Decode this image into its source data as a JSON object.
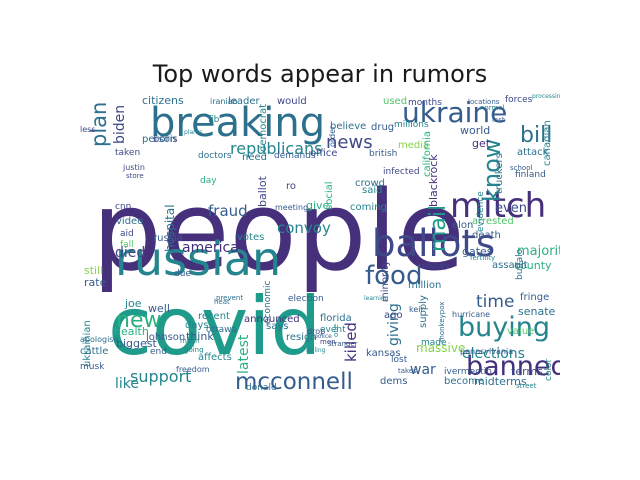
{
  "title": "Top words appear in rumors",
  "colors": {
    "dark_purple": "#46307b",
    "purple": "#3f4889",
    "blue": "#365c8d",
    "teal_blue": "#2d708e",
    "teal": "#25858e",
    "green_teal": "#1e9b8a",
    "green": "#2ab07f",
    "light_green": "#52c569",
    "yellow_green": "#86d549",
    "yellow": "#c2df23"
  },
  "words": [
    {
      "text": "people",
      "color": "dark_purple"
    },
    {
      "text": "covid",
      "color": "green_teal"
    },
    {
      "text": "russian",
      "color": "teal"
    },
    {
      "text": "breaking",
      "color": "teal_blue"
    },
    {
      "text": "ukraine",
      "color": "blue"
    },
    {
      "text": "ballots",
      "color": "purple"
    },
    {
      "text": "mitch",
      "color": "dark_purple"
    },
    {
      "text": "buying",
      "color": "teal"
    },
    {
      "text": "banned",
      "color": "dark_purple"
    },
    {
      "text": "food",
      "color": "blue"
    },
    {
      "text": "mcconnell",
      "color": "blue"
    },
    {
      "text": "know",
      "color": "teal"
    },
    {
      "text": "mail",
      "color": "green_teal"
    },
    {
      "text": "bill",
      "color": "teal_blue"
    },
    {
      "text": "news",
      "color": "purple"
    },
    {
      "text": "plan",
      "color": "teal_blue"
    },
    {
      "text": "new",
      "color": "green"
    },
    {
      "text": "republicans",
      "color": "teal"
    },
    {
      "text": "biden",
      "color": "purple"
    },
    {
      "text": "support",
      "color": "teal"
    },
    {
      "text": "america",
      "color": "dark_purple"
    },
    {
      "text": "convoy",
      "color": "teal"
    },
    {
      "text": "fraud",
      "color": "blue"
    },
    {
      "text": "elections",
      "color": "teal"
    },
    {
      "text": "time",
      "color": "blue"
    },
    {
      "text": "latest",
      "color": "green"
    },
    {
      "text": "killed",
      "color": "dark_purple"
    },
    {
      "text": "giving",
      "color": "teal_blue"
    },
    {
      "text": "war",
      "color": "blue"
    },
    {
      "text": "like",
      "color": "teal"
    },
    {
      "text": "died",
      "color": "purple"
    },
    {
      "text": "hospital",
      "color": "teal_blue"
    },
    {
      "text": "vaccine",
      "color": "teal_blue"
    },
    {
      "text": "citizens",
      "color": "teal_blue"
    },
    {
      "text": "leader",
      "color": "teal_blue"
    },
    {
      "text": "would",
      "color": "purple"
    },
    {
      "text": "believe",
      "color": "teal_blue"
    },
    {
      "text": "used",
      "color": "light_green"
    },
    {
      "text": "world",
      "color": "blue"
    },
    {
      "text": "get",
      "color": "dark_purple"
    },
    {
      "text": "even",
      "color": "purple"
    },
    {
      "text": "majority",
      "color": "green"
    },
    {
      "text": "county",
      "color": "green"
    },
    {
      "text": "fringe",
      "color": "blue"
    },
    {
      "text": "senate",
      "color": "teal_blue"
    },
    {
      "text": "value",
      "color": "light_green"
    },
    {
      "text": "terms",
      "color": "purple"
    },
    {
      "text": "midterms",
      "color": "teal_blue"
    },
    {
      "text": "massive",
      "color": "yellow_green"
    },
    {
      "text": "supply",
      "color": "teal_blue"
    },
    {
      "text": "kansas",
      "color": "blue"
    },
    {
      "text": "resign",
      "color": "teal_blue"
    },
    {
      "text": "florida",
      "color": "teal_blue"
    },
    {
      "text": "announced",
      "color": "dark_purple"
    },
    {
      "text": "says",
      "color": "teal_blue"
    },
    {
      "text": "recent",
      "color": "teal"
    },
    {
      "text": "well",
      "color": "blue"
    },
    {
      "text": "joe",
      "color": "teal"
    },
    {
      "text": "rate",
      "color": "blue"
    },
    {
      "text": "still",
      "color": "yellow_green"
    },
    {
      "text": "health",
      "color": "green"
    },
    {
      "text": "biggest",
      "color": "blue"
    },
    {
      "text": "think",
      "color": "blue"
    },
    {
      "text": "days",
      "color": "teal"
    },
    {
      "text": "ukrainian",
      "color": "teal"
    },
    {
      "text": "russia",
      "color": "blue"
    },
    {
      "text": "video",
      "color": "teal_blue"
    },
    {
      "text": "cnn",
      "color": "purple"
    },
    {
      "text": "aid",
      "color": "purple"
    },
    {
      "text": "fall",
      "color": "light_green"
    },
    {
      "text": "boris",
      "color": "purple"
    },
    {
      "text": "taken",
      "color": "purple"
    },
    {
      "text": "person",
      "color": "teal_blue"
    },
    {
      "text": "doctors",
      "color": "teal_blue"
    },
    {
      "text": "need",
      "color": "teal_blue"
    },
    {
      "text": "office",
      "color": "purple"
    },
    {
      "text": "british",
      "color": "blue"
    },
    {
      "text": "media",
      "color": "yellow_green"
    },
    {
      "text": "crowd",
      "color": "teal_blue"
    },
    {
      "text": "said",
      "color": "teal"
    },
    {
      "text": "coming",
      "color": "teal"
    },
    {
      "text": "social",
      "color": "green"
    },
    {
      "text": "give",
      "color": "green"
    },
    {
      "text": "votes",
      "color": "teal"
    },
    {
      "text": "ago",
      "color": "purple"
    },
    {
      "text": "event",
      "color": "teal"
    },
    {
      "text": "minority",
      "color": "purple"
    },
    {
      "text": "million",
      "color": "teal_blue"
    },
    {
      "text": "gates",
      "color": "blue"
    },
    {
      "text": "assault",
      "color": "teal_blue"
    },
    {
      "text": "death",
      "color": "blue"
    },
    {
      "text": "arrested",
      "color": "light_green"
    },
    {
      "text": "truckers",
      "color": "teal_blue"
    },
    {
      "text": "buffalo",
      "color": "teal_blue"
    },
    {
      "text": "blackrock",
      "color": "dark_purple"
    },
    {
      "text": "california",
      "color": "green"
    },
    {
      "text": "evidence",
      "color": "teal"
    },
    {
      "text": "attack",
      "color": "teal_blue"
    },
    {
      "text": "canadian",
      "color": "teal"
    },
    {
      "text": "finland",
      "color": "blue"
    },
    {
      "text": "forces",
      "color": "purple"
    },
    {
      "text": "drug",
      "color": "blue"
    },
    {
      "text": "millions",
      "color": "teal"
    },
    {
      "text": "months",
      "color": "purple"
    },
    {
      "text": "ballot",
      "color": "purple"
    },
    {
      "text": "democrat",
      "color": "teal"
    },
    {
      "text": "fjb",
      "color": "teal"
    },
    {
      "text": "ro",
      "color": "purple"
    },
    {
      "text": "election",
      "color": "blue"
    },
    {
      "text": "meeting",
      "color": "blue"
    },
    {
      "text": "demands",
      "color": "blue"
    },
    {
      "text": "economic",
      "color": "teal_blue"
    },
    {
      "text": "donald",
      "color": "teal_blue"
    },
    {
      "text": "affects",
      "color": "teal"
    },
    {
      "text": "ottawa",
      "color": "teal_blue"
    },
    {
      "text": "johnson",
      "color": "blue"
    },
    {
      "text": "end",
      "color": "blue"
    },
    {
      "text": "cattle",
      "color": "teal_blue"
    },
    {
      "text": "musk",
      "color": "blue"
    },
    {
      "text": "apologise",
      "color": "teal_blue"
    },
    {
      "text": "color",
      "color": "teal"
    },
    {
      "text": "dems",
      "color": "blue"
    },
    {
      "text": "become",
      "color": "teal_blue"
    },
    {
      "text": "ivermectin",
      "color": "blue"
    },
    {
      "text": "elon",
      "color": "blue"
    },
    {
      "text": "lost",
      "color": "blue"
    },
    {
      "text": "made",
      "color": "teal"
    },
    {
      "text": "keir",
      "color": "blue"
    },
    {
      "text": "history",
      "color": "purple"
    },
    {
      "text": "hurricane",
      "color": "blue"
    },
    {
      "text": "pennsylvania",
      "color": "blue"
    },
    {
      "text": "infected",
      "color": "purple"
    },
    {
      "text": "iranian",
      "color": "teal_blue"
    },
    {
      "text": "justin",
      "color": "purple"
    },
    {
      "text": "store",
      "color": "purple"
    },
    {
      "text": "less",
      "color": "purple"
    },
    {
      "text": "drop",
      "color": "purple"
    },
    {
      "text": "men",
      "color": "purple"
    },
    {
      "text": "freedom",
      "color": "blue"
    },
    {
      "text": "much",
      "color": "teal"
    },
    {
      "text": "going",
      "color": "teal"
    },
    {
      "text": "prevent",
      "color": "teal_blue"
    },
    {
      "text": "stranger",
      "color": "blue"
    },
    {
      "text": "locations",
      "color": "blue"
    },
    {
      "text": "normal",
      "color": "teal"
    },
    {
      "text": "last",
      "color": "blue"
    },
    {
      "text": "order",
      "color": "blue"
    },
    {
      "text": "fertility",
      "color": "teal"
    },
    {
      "text": "school",
      "color": "blue"
    },
    {
      "text": "processing",
      "color": "teal"
    },
    {
      "text": "plants",
      "color": "teal"
    },
    {
      "text": "heat",
      "color": "teal_blue"
    },
    {
      "text": "day",
      "color": "green"
    },
    {
      "text": "due",
      "color": "blue"
    },
    {
      "text": "one",
      "color": "teal"
    },
    {
      "text": "learning",
      "color": "teal"
    },
    {
      "text": "selling",
      "color": "teal"
    },
    {
      "text": "police",
      "color": "blue"
    },
    {
      "text": "monkeypox",
      "color": "teal_blue"
    },
    {
      "text": "street",
      "color": "teal"
    },
    {
      "text": "takes",
      "color": "blue"
    }
  ]
}
